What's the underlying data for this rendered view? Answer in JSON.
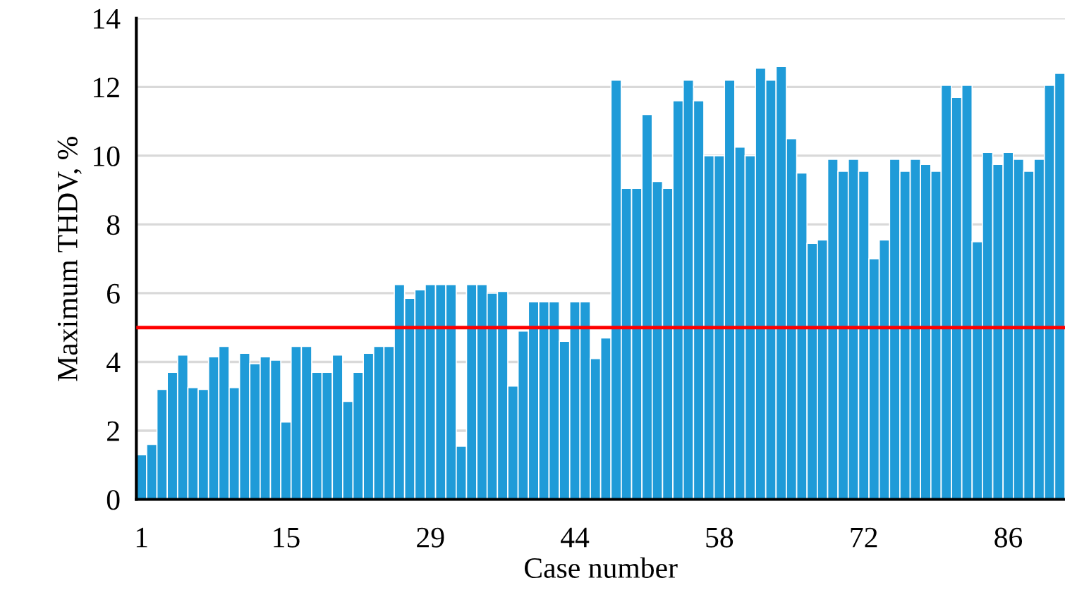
{
  "chart_data": {
    "type": "bar",
    "xlabel": "Case number",
    "ylabel": "Maximum THDV, %",
    "categories": [
      "1",
      null,
      null,
      null,
      null,
      null,
      null,
      null,
      null,
      null,
      null,
      null,
      null,
      null,
      "15",
      null,
      null,
      null,
      null,
      null,
      null,
      null,
      null,
      null,
      null,
      null,
      null,
      null,
      "29",
      null,
      null,
      null,
      null,
      null,
      null,
      null,
      null,
      null,
      null,
      null,
      null,
      null,
      "44",
      null,
      null,
      null,
      null,
      null,
      null,
      null,
      null,
      null,
      null,
      null,
      null,
      null,
      "58",
      null,
      null,
      null,
      null,
      null,
      null,
      null,
      null,
      null,
      null,
      null,
      null,
      null,
      "72",
      null,
      null,
      null,
      null,
      null,
      null,
      null,
      null,
      null,
      null,
      null,
      null,
      null,
      "86",
      null,
      null,
      null,
      null,
      null
    ],
    "values": [
      1.3,
      1.6,
      3.2,
      3.7,
      4.2,
      3.25,
      3.2,
      4.15,
      4.45,
      3.25,
      4.25,
      3.95,
      4.15,
      4.05,
      2.25,
      4.45,
      4.45,
      3.7,
      3.7,
      4.2,
      2.85,
      3.7,
      4.25,
      4.45,
      4.45,
      6.25,
      5.85,
      6.1,
      6.25,
      6.25,
      6.25,
      1.55,
      6.25,
      6.25,
      6.0,
      6.05,
      3.3,
      4.9,
      5.75,
      5.75,
      5.75,
      4.6,
      5.75,
      5.75,
      4.1,
      4.7,
      12.2,
      9.05,
      9.05,
      11.2,
      9.25,
      9.05,
      11.6,
      12.2,
      11.6,
      10.0,
      10.0,
      12.2,
      10.25,
      10.0,
      12.55,
      12.2,
      12.6,
      10.5,
      9.5,
      7.45,
      7.55,
      9.9,
      9.55,
      9.9,
      9.55,
      7.0,
      7.55,
      9.9,
      9.55,
      9.9,
      9.75,
      9.55,
      12.05,
      11.7,
      12.05,
      7.5,
      10.1,
      9.75,
      10.1,
      9.9,
      9.55,
      9.9,
      12.05,
      12.4
    ],
    "color": "#1f9bd8",
    "ylim": [
      0,
      14
    ],
    "yticks": [
      0,
      2,
      4,
      6,
      8,
      10,
      12,
      14
    ],
    "grid": "y",
    "ref_lines": [
      {
        "axis": "y",
        "value": 5,
        "color": "#ff0000"
      }
    ]
  }
}
